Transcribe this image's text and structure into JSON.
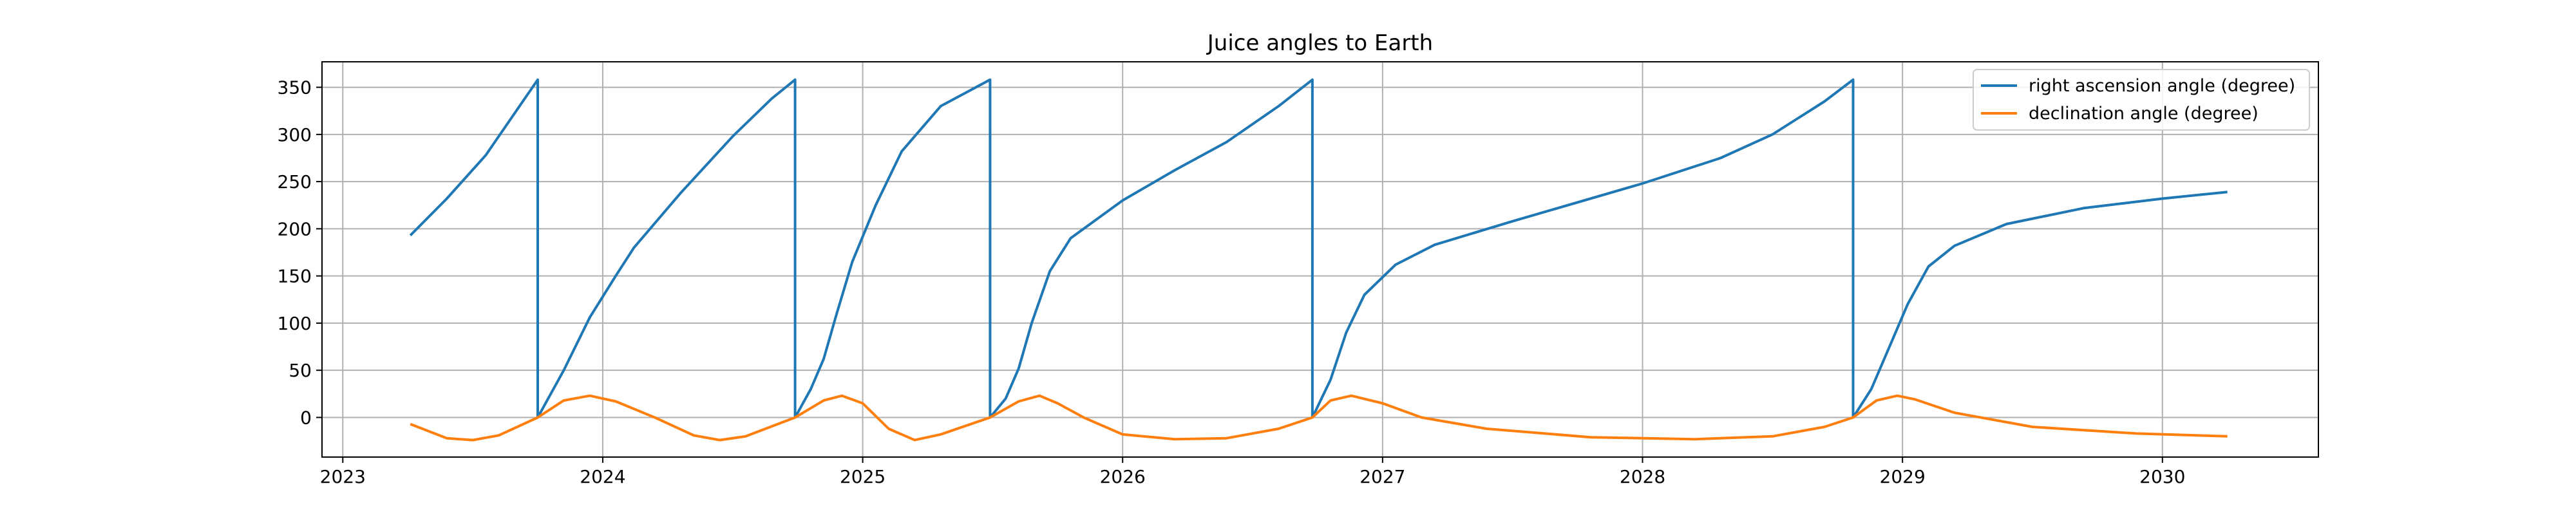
{
  "chart_data": {
    "type": "line",
    "title": "Juice angles to Earth",
    "xlabel": "",
    "ylabel": "",
    "xlim": [
      2022.92,
      2030.6
    ],
    "ylim": [
      -42,
      377
    ],
    "x_ticks": [
      2023,
      2024,
      2025,
      2026,
      2027,
      2028,
      2029,
      2030
    ],
    "x_tick_labels": [
      "2023",
      "2024",
      "2025",
      "2026",
      "2027",
      "2028",
      "2029",
      "2030"
    ],
    "y_ticks": [
      0,
      50,
      100,
      150,
      200,
      250,
      300,
      350
    ],
    "y_tick_labels": [
      "0",
      "50",
      "100",
      "150",
      "200",
      "250",
      "300",
      "350"
    ],
    "grid": true,
    "legend_position": "top-right",
    "colors": {
      "ra": "#1f77b4",
      "dec": "#ff7f0e",
      "grid": "#b0b0b0",
      "axes": "#000000"
    },
    "series": [
      {
        "name": "right ascension angle (degree)",
        "color": "#1f77b4",
        "points": [
          [
            2023.26,
            193
          ],
          [
            2023.4,
            232
          ],
          [
            2023.55,
            278
          ],
          [
            2023.75,
            358
          ],
          [
            2023.75,
            0
          ],
          [
            2023.85,
            50
          ],
          [
            2023.95,
            106
          ],
          [
            2024.05,
            150
          ],
          [
            2024.12,
            180
          ],
          [
            2024.3,
            238
          ],
          [
            2024.5,
            298
          ],
          [
            2024.65,
            338
          ],
          [
            2024.74,
            358
          ],
          [
            2024.74,
            0
          ],
          [
            2024.8,
            30
          ],
          [
            2024.85,
            62
          ],
          [
            2024.9,
            110
          ],
          [
            2024.96,
            165
          ],
          [
            2025.05,
            225
          ],
          [
            2025.15,
            282
          ],
          [
            2025.3,
            330
          ],
          [
            2025.49,
            358
          ],
          [
            2025.49,
            0
          ],
          [
            2025.55,
            20
          ],
          [
            2025.6,
            52
          ],
          [
            2025.65,
            100
          ],
          [
            2025.72,
            155
          ],
          [
            2025.8,
            190
          ],
          [
            2026.0,
            230
          ],
          [
            2026.2,
            262
          ],
          [
            2026.4,
            292
          ],
          [
            2026.6,
            330
          ],
          [
            2026.73,
            358
          ],
          [
            2026.73,
            0
          ],
          [
            2026.8,
            40
          ],
          [
            2026.86,
            90
          ],
          [
            2026.93,
            130
          ],
          [
            2027.05,
            162
          ],
          [
            2027.2,
            183
          ],
          [
            2027.5,
            208
          ],
          [
            2028.0,
            248
          ],
          [
            2028.3,
            275
          ],
          [
            2028.5,
            300
          ],
          [
            2028.7,
            335
          ],
          [
            2028.81,
            358
          ],
          [
            2028.81,
            0
          ],
          [
            2028.88,
            30
          ],
          [
            2028.95,
            75
          ],
          [
            2029.02,
            120
          ],
          [
            2029.1,
            160
          ],
          [
            2029.2,
            182
          ],
          [
            2029.4,
            205
          ],
          [
            2029.7,
            222
          ],
          [
            2030.0,
            232
          ],
          [
            2030.25,
            239
          ]
        ]
      },
      {
        "name": "declination angle (degree)",
        "color": "#ff7f0e",
        "points": [
          [
            2023.26,
            -7
          ],
          [
            2023.4,
            -22
          ],
          [
            2023.5,
            -24
          ],
          [
            2023.6,
            -19
          ],
          [
            2023.75,
            0
          ],
          [
            2023.85,
            18
          ],
          [
            2023.95,
            23
          ],
          [
            2024.05,
            17
          ],
          [
            2024.2,
            0
          ],
          [
            2024.35,
            -19
          ],
          [
            2024.45,
            -24
          ],
          [
            2024.55,
            -20
          ],
          [
            2024.74,
            0
          ],
          [
            2024.85,
            18
          ],
          [
            2024.92,
            23
          ],
          [
            2025.0,
            15
          ],
          [
            2025.1,
            -12
          ],
          [
            2025.2,
            -24
          ],
          [
            2025.3,
            -18
          ],
          [
            2025.49,
            0
          ],
          [
            2025.6,
            17
          ],
          [
            2025.68,
            23
          ],
          [
            2025.75,
            15
          ],
          [
            2025.85,
            0
          ],
          [
            2026.0,
            -18
          ],
          [
            2026.2,
            -23
          ],
          [
            2026.4,
            -22
          ],
          [
            2026.6,
            -12
          ],
          [
            2026.73,
            0
          ],
          [
            2026.8,
            18
          ],
          [
            2026.88,
            23
          ],
          [
            2027.0,
            15
          ],
          [
            2027.15,
            0
          ],
          [
            2027.4,
            -12
          ],
          [
            2027.8,
            -21
          ],
          [
            2028.2,
            -23
          ],
          [
            2028.5,
            -20
          ],
          [
            2028.7,
            -10
          ],
          [
            2028.81,
            0
          ],
          [
            2028.9,
            18
          ],
          [
            2028.98,
            23
          ],
          [
            2029.05,
            19
          ],
          [
            2029.2,
            5
          ],
          [
            2029.5,
            -10
          ],
          [
            2029.9,
            -17
          ],
          [
            2030.25,
            -20
          ]
        ]
      }
    ]
  }
}
